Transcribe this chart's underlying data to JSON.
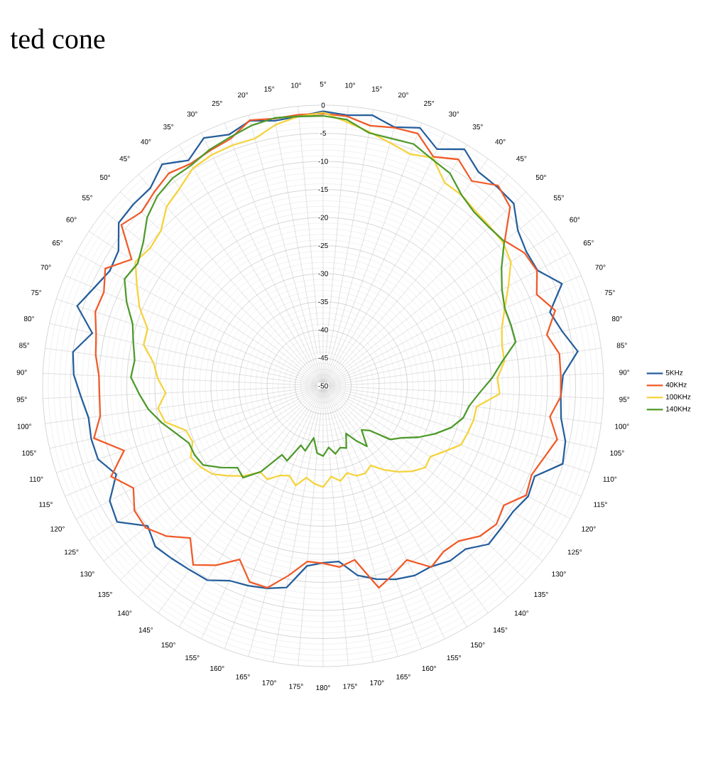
{
  "chart_data": {
    "type": "radar",
    "categories": [
      "5°",
      "10°",
      "15°",
      "20°",
      "25°",
      "30°",
      "35°",
      "40°",
      "45°",
      "50°",
      "55°",
      "60°",
      "65°",
      "70°",
      "75°",
      "80°",
      "85°",
      "90°",
      "95°",
      "100°",
      "105°",
      "110°",
      "115°",
      "120°",
      "125°",
      "130°",
      "135°",
      "140°",
      "145°",
      "150°",
      "155°",
      "160°",
      "165°",
      "170°",
      "175°",
      "180°",
      "175°",
      "170°",
      "165°",
      "160°",
      "155°",
      "150°",
      "145°",
      "140°",
      "135°",
      "130°",
      "125°",
      "120°",
      "115°",
      "110°",
      "105°",
      "100°",
      "95°",
      "90°",
      "85°",
      "80°",
      "75°",
      "70°",
      "65°",
      "60°",
      "55°",
      "50°",
      "45°",
      "40°",
      "35°",
      "30°",
      "25°",
      "20°",
      "15°",
      "10°"
    ],
    "ylim": [
      -50,
      0
    ],
    "yticks": [
      0,
      -5,
      -10,
      -15,
      -20,
      -25,
      -30,
      -35,
      -40,
      -45,
      -50
    ],
    "grid": true,
    "legend": "right",
    "annotations": [
      "ted cone"
    ],
    "series": [
      {
        "name": "5KHz",
        "color": "#255e9c",
        "values": [
          -1.1,
          -1.6,
          -1,
          -2.2,
          -0.9,
          -3.2,
          -0.9,
          -2.9,
          -2.9,
          -3,
          -5.6,
          -6.6,
          -6.6,
          -3.7,
          -7.5,
          -6.3,
          -4.2,
          -7.2,
          -7.6,
          -7.2,
          -5.7,
          -5.1,
          -9,
          -8.5,
          -9.4,
          -9.4,
          -9.2,
          -11.4,
          -11.5,
          -12.5,
          -12.5,
          -13.2,
          -14.3,
          -15.7,
          -18.6,
          -18.5,
          -17.8,
          -13.5,
          -12.6,
          -12,
          -11.5,
          -9.7,
          -9.5,
          -9.1,
          -8.6,
          -10,
          -6,
          -6.8,
          -9.9,
          -7.8,
          -7.6,
          -7.8,
          -6.8,
          -5.5,
          -5,
          -7.8,
          -3.9,
          -5.6,
          -6.8,
          -6.3,
          -3.4,
          -3.2,
          -3.2,
          -1.2,
          -3.2,
          -1,
          -2.2,
          -1,
          -2,
          -1.8
        ]
      },
      {
        "name": "40KHz",
        "color": "#f05a28",
        "values": [
          -1.5,
          -1.8,
          -2.9,
          -2.3,
          -2,
          -4.7,
          -3,
          -4.9,
          -2.6,
          -3.9,
          -8.6,
          -7,
          -6.7,
          -8.6,
          -6.5,
          -9.1,
          -7.5,
          -7.6,
          -7.6,
          -9.2,
          -7.2,
          -8.6,
          -9.6,
          -8.9,
          -11.4,
          -10.5,
          -11.3,
          -13.3,
          -13.5,
          -12.4,
          -15.6,
          -14.2,
          -12.7,
          -18.5,
          -17.6,
          -18.4,
          -18.6,
          -15.7,
          -12.7,
          -12.7,
          -15.7,
          -12.8,
          -10.6,
          -14,
          -11.3,
          -9.5,
          -9.7,
          -11.6,
          -8.9,
          -12.7,
          -8.1,
          -9.9,
          -10.1,
          -10,
          -9.1,
          -8.5,
          -7.3,
          -7.5,
          -5.9,
          -9.1,
          -4,
          -5.2,
          -4.2,
          -3.2,
          -3.9,
          -3.5,
          -3,
          -0.9,
          -1.6,
          -1.5
        ]
      },
      {
        "name": "100KHz",
        "color": "#f5d33c",
        "values": [
          -1.3,
          -2.8,
          -4,
          -5.1,
          -5.9,
          -4.9,
          -7.8,
          -8,
          -8.7,
          -8.9,
          -9,
          -9.9,
          -12.5,
          -14.8,
          -16.5,
          -17.3,
          -17.4,
          -18.9,
          -18.5,
          -22.4,
          -22.5,
          -22.9,
          -23.3,
          -25.4,
          -27.1,
          -26.7,
          -28,
          -29.7,
          -31.5,
          -33.5,
          -32.7,
          -32.9,
          -33.9,
          -32.8,
          -33.8,
          -32,
          -32.5,
          -33.4,
          -31.6,
          -32.9,
          -32.3,
          -30.6,
          -31,
          -28.7,
          -26.8,
          -24.8,
          -23.8,
          -23.2,
          -24.7,
          -24.3,
          -21.1,
          -20.3,
          -21.9,
          -20.5,
          -19.5,
          -17.2,
          -17.1,
          -14.4,
          -12.3,
          -9.9,
          -10.6,
          -10,
          -7.6,
          -6.5,
          -4.8,
          -4.3,
          -4.2,
          -4.3,
          -2.7,
          -1.8
        ]
      },
      {
        "name": "140KHz",
        "color": "#4e9a2a",
        "values": [
          -1.9,
          -2.4,
          -4.2,
          -4.3,
          -4,
          -5.2,
          -5.9,
          -8,
          -9,
          -9.1,
          -8.7,
          -11.9,
          -13.8,
          -14.8,
          -14.8,
          -14.8,
          -17.8,
          -19.9,
          -22.1,
          -23.7,
          -24.4,
          -26,
          -28.3,
          -30.7,
          -33.2,
          -34.7,
          -38.5,
          -39.6,
          -36.7,
          -38.7,
          -40.6,
          -38.2,
          -38.6,
          -37.7,
          -39,
          -37.5,
          -38,
          -40.6,
          -38,
          -38.7,
          -35.2,
          -35.7,
          -31.1,
          -28.3,
          -28.9,
          -26.7,
          -24.4,
          -24,
          -24,
          -22.5,
          -20.5,
          -18.6,
          -17.2,
          -15.7,
          -16.1,
          -15.3,
          -14.3,
          -11.9,
          -9.8,
          -10.4,
          -9,
          -6.6,
          -5.1,
          -4.3,
          -4.2,
          -3.3,
          -2.7,
          -1.9,
          -1.5,
          -1.8
        ]
      }
    ]
  }
}
